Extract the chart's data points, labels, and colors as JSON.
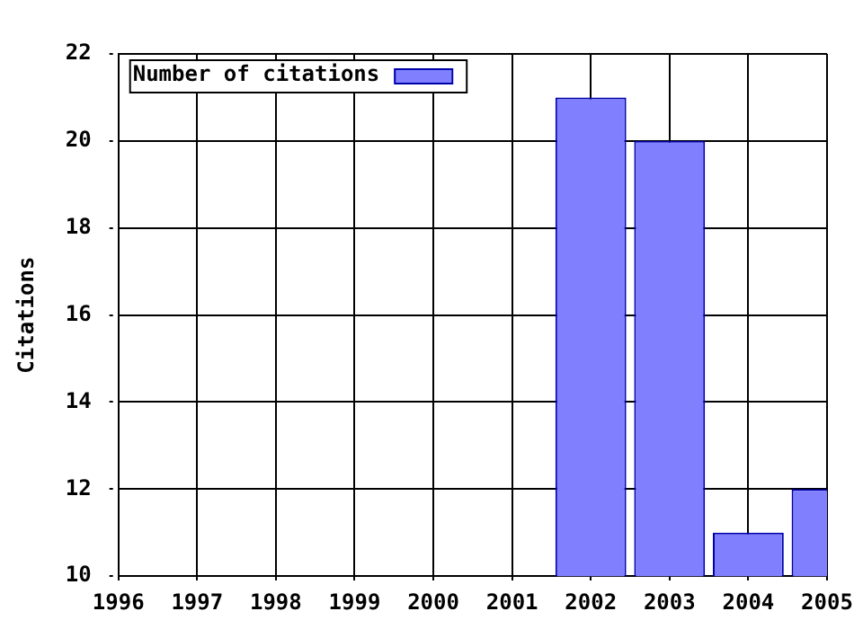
{
  "chart_data": {
    "type": "bar",
    "ylabel": "Citations",
    "x": [
      2002,
      2003,
      2004,
      2005
    ],
    "series": [
      {
        "name": "Number of citations",
        "color": "#8080ff",
        "values": [
          21,
          20,
          11,
          12
        ]
      }
    ],
    "xlim": [
      1996,
      2005
    ],
    "xticks": [
      1996,
      1997,
      1998,
      1999,
      2000,
      2001,
      2002,
      2003,
      2004,
      2005
    ],
    "ylim": [
      10,
      22
    ],
    "yticks": [
      10,
      12,
      14,
      16,
      18,
      20,
      22
    ],
    "grid": true,
    "legend": "top left"
  }
}
